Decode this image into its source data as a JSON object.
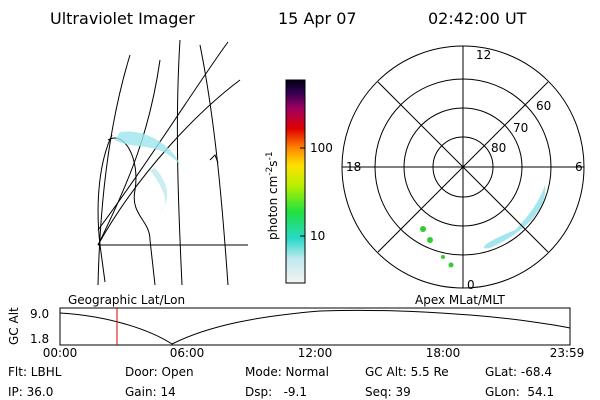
{
  "header": {
    "instrument": "Ultraviolet Imager",
    "date": "15 Apr 07",
    "time": "02:42:00 UT"
  },
  "colorbar": {
    "label": "photon cm",
    "exp1": "-2",
    "unit2": "s",
    "exp2": "-1",
    "ticks": [
      "100",
      "10"
    ]
  },
  "polar": {
    "labels": {
      "top": "12",
      "left": "18",
      "right": "6",
      "bottom": "0",
      "r60": "60",
      "r70": "70",
      "r80": "80"
    }
  },
  "panels": {
    "left": "Geographic Lat/Lon",
    "right": "Apex MLat/MLT"
  },
  "altplot": {
    "ylabel": "GC Alt",
    "yticks": [
      "9.0",
      "1.8"
    ],
    "xticks": [
      "00:00",
      "06:00",
      "12:00",
      "18:00",
      "23:59"
    ]
  },
  "info": {
    "row1": [
      "Flt: LBHL",
      "Door: Open",
      "Mode: Normal",
      "GC Alt: 5.5 Re",
      "GLat: -68.4"
    ],
    "row2": [
      "IP: 36.0",
      "Gain: 14",
      "Dsp:   -9.1",
      "Seq: 39",
      "GLon:  54.1"
    ]
  }
}
